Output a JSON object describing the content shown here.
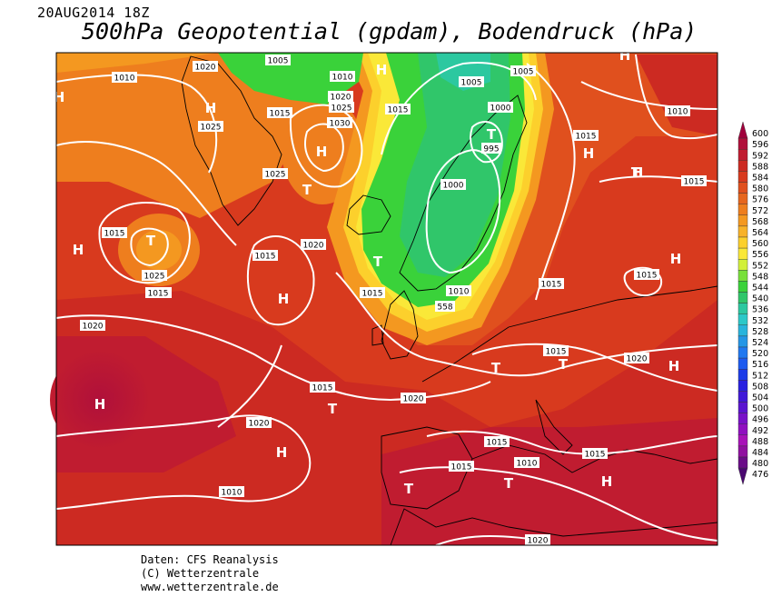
{
  "header": {
    "date": "20AUG2014 18Z",
    "title": "500hPa Geopotential (gpdam), Bodendruck (hPa)"
  },
  "footer": {
    "line1": "Daten: CFS Reanalysis",
    "line2": "(C) Wetterzentrale",
    "line3": "www.wetterzentrale.de"
  },
  "colorscale": {
    "labels": [
      "600",
      "596",
      "592",
      "588",
      "584",
      "580",
      "576",
      "572",
      "568",
      "564",
      "560",
      "556",
      "552",
      "548",
      "544",
      "540",
      "536",
      "532",
      "528",
      "524",
      "520",
      "516",
      "512",
      "508",
      "504",
      "500",
      "496",
      "492",
      "488",
      "484",
      "480",
      "476"
    ],
    "colors": [
      "#a0003c",
      "#b0103a",
      "#c01c30",
      "#cc2a22",
      "#d83a1e",
      "#e0501e",
      "#e6661e",
      "#ee7e1e",
      "#f49820",
      "#f8b228",
      "#fcd02c",
      "#fae838",
      "#d2f03a",
      "#78e03a",
      "#3ad23a",
      "#30c66a",
      "#2cc8a0",
      "#2cc8c8",
      "#28b4dc",
      "#2496e6",
      "#2078f0",
      "#1c5af0",
      "#1c3ce8",
      "#2820e0",
      "#4018d8",
      "#5a14d0",
      "#7812c8",
      "#9010c0",
      "#a812b8",
      "#9010a0",
      "#6a0c88",
      "#4a0870"
    ]
  },
  "pressure_labels": [
    "1020",
    "1005",
    "1010",
    "1010",
    "1020",
    "1025",
    "1025",
    "1015",
    "1030",
    "1015",
    "1005",
    "1000",
    "995",
    "1005",
    "1015",
    "1025",
    "1000",
    "1015",
    "1015",
    "1025",
    "1020",
    "1010",
    "1015",
    "1015",
    "1015",
    "1010",
    "558",
    "1015",
    "1015",
    "1015",
    "1020",
    "1020",
    "1015",
    "1020",
    "1015",
    "1015",
    "1010",
    "1020",
    "1015",
    "1010",
    "1020",
    "1015"
  ],
  "systems": [
    "H",
    "H",
    "H",
    "H",
    "T",
    "H",
    "T",
    "H",
    "T",
    "H",
    "T",
    "H",
    "H",
    "T",
    "H",
    "H",
    "T",
    "T",
    "H",
    "T",
    "H",
    "T",
    "H",
    "T"
  ]
}
